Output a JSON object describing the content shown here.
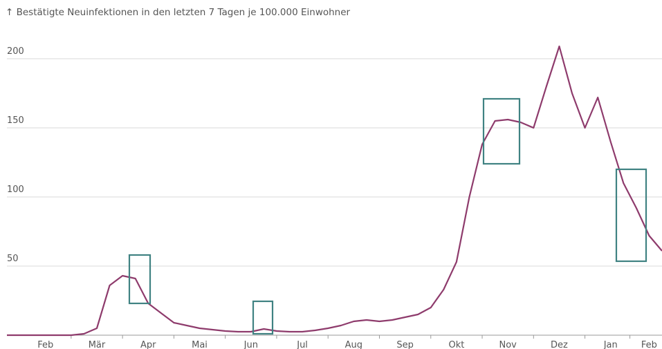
{
  "chart_data": {
    "type": "line",
    "title": "↑ Bestätigte Neuinfektionen in den letzten 7 Tagen je 100.000 Einwohner",
    "x": [
      null,
      null,
      null,
      "Feb",
      null,
      null,
      null,
      "Mär",
      null,
      null,
      null,
      "Apr",
      null,
      null,
      null,
      "Mai",
      null,
      null,
      null,
      "Jun",
      null,
      null,
      null,
      "Jul",
      null,
      null,
      null,
      "Aug",
      null,
      null,
      null,
      "Sep",
      null,
      null,
      null,
      "Okt",
      null,
      null,
      null,
      "Nov",
      null,
      null,
      null,
      "Dez",
      null,
      null,
      null,
      "Jan",
      null,
      null,
      "Feb",
      null
    ],
    "series": [
      {
        "name": null,
        "color": "#8e3b6c",
        "values": [
          0,
          0,
          0,
          0,
          0,
          0,
          1,
          5,
          36,
          43,
          41,
          23,
          16,
          9,
          7,
          5,
          4,
          3,
          2.5,
          2.5,
          4.5,
          3,
          2.5,
          2.5,
          3.5,
          5,
          7,
          10,
          11,
          10,
          11,
          13,
          15,
          20,
          33,
          53,
          100,
          138,
          155,
          156,
          154,
          150,
          180,
          209,
          175,
          150,
          172,
          140,
          110,
          92,
          72,
          61
        ]
      }
    ],
    "ylim": [
      0,
      220
    ],
    "yticks": [
      50,
      100,
      150,
      200
    ],
    "grid": true
  }
}
